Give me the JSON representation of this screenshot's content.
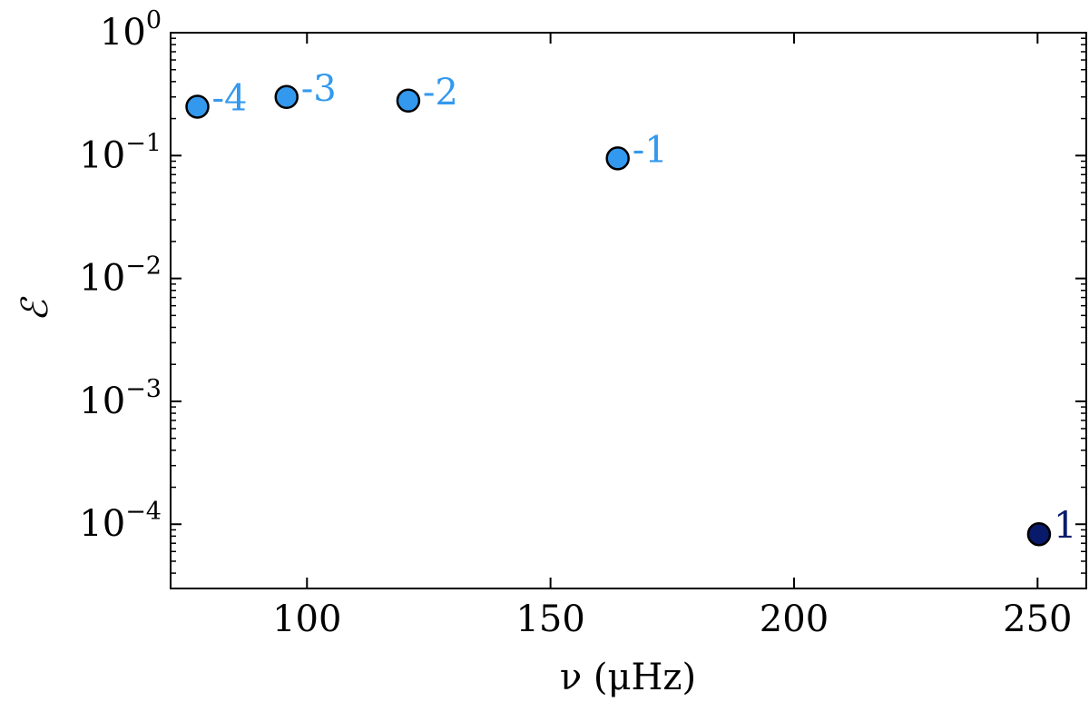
{
  "chart_data": {
    "type": "scatter",
    "xlabel": "ν (μHz)",
    "ylabel": "ℰ",
    "xlim": [
      72,
      260
    ],
    "ylim": [
      3e-05,
      1
    ],
    "yscale": "log",
    "grid": false,
    "x_ticks": [
      {
        "value": 100,
        "label": "100"
      },
      {
        "value": 150,
        "label": "150"
      },
      {
        "value": 200,
        "label": "200"
      },
      {
        "value": 250,
        "label": "250"
      }
    ],
    "y_ticks": [
      {
        "value": 1,
        "base": "10",
        "exp": "0"
      },
      {
        "value": 0.1,
        "base": "10",
        "exp": "−1"
      },
      {
        "value": 0.01,
        "base": "10",
        "exp": "−2"
      },
      {
        "value": 0.001,
        "base": "10",
        "exp": "−3"
      },
      {
        "value": 0.0001,
        "base": "10",
        "exp": "−4"
      }
    ],
    "points": [
      {
        "x": 77.5,
        "y": 0.25,
        "label": "-4",
        "color": "#3399ee",
        "label_color": "#3399ee"
      },
      {
        "x": 95.8,
        "y": 0.3,
        "label": "-3",
        "color": "#3399ee",
        "label_color": "#3399ee"
      },
      {
        "x": 120.8,
        "y": 0.28,
        "label": "-2",
        "color": "#3399ee",
        "label_color": "#3399ee"
      },
      {
        "x": 163.8,
        "y": 0.095,
        "label": "-1",
        "color": "#3399ee",
        "label_color": "#3399ee"
      },
      {
        "x": 250.3,
        "y": 8.3e-05,
        "label": "1",
        "color": "#0a1a6b",
        "label_color": "#0a1a6b"
      }
    ]
  }
}
